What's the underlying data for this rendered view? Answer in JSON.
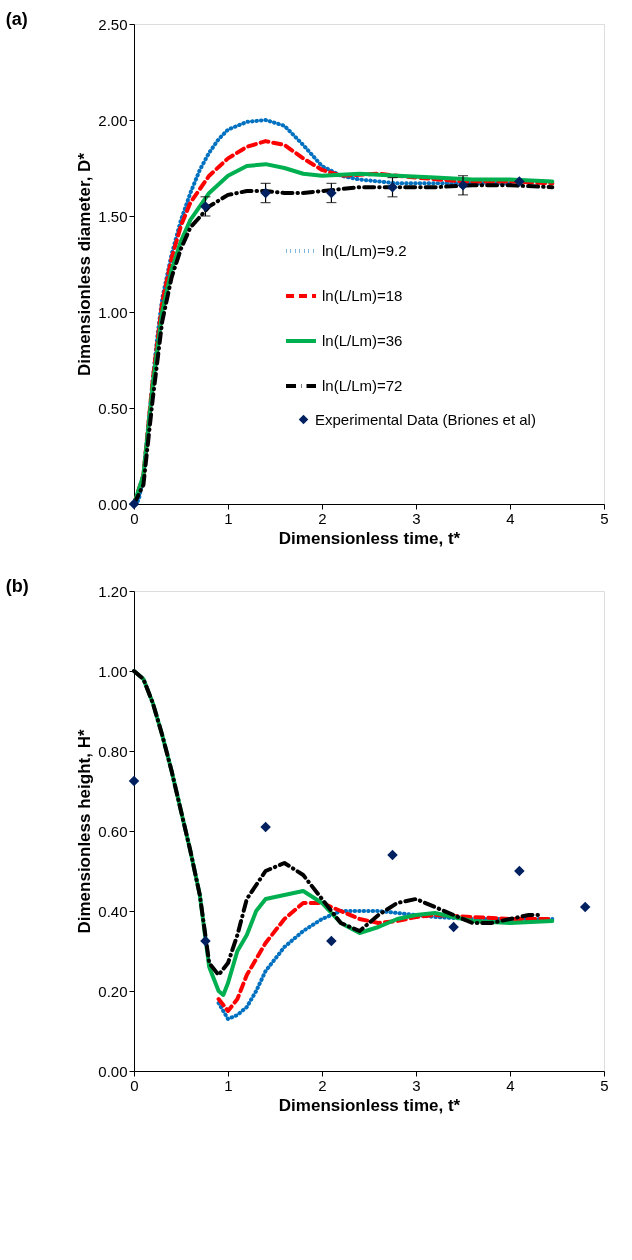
{
  "chart_data": [
    {
      "type": "line",
      "title": "(a)",
      "xlabel": "Dimensionless time, t*",
      "ylabel": "Dimensionless diameter, D*",
      "xlim": [
        0,
        5
      ],
      "xticks": [
        0,
        1,
        2,
        3,
        4,
        5
      ],
      "ylim": [
        0,
        2.5
      ],
      "yticks": [
        {
          "value": 0,
          "label": "0.00"
        },
        {
          "value": 0.5,
          "label": "0.50"
        },
        {
          "value": 1,
          "label": "1.00"
        },
        {
          "value": 1.5,
          "label": "1.50"
        },
        {
          "value": 2,
          "label": "2.00"
        },
        {
          "value": 2.5,
          "label": "2.50"
        }
      ],
      "grid": false,
      "legend": "center",
      "series": [
        {
          "name": "ln(L/Lm)=9.2",
          "color": "#0070c0",
          "line_style": "dotted",
          "marker": "none",
          "x": [
            0,
            0.05,
            0.1,
            0.15,
            0.2,
            0.25,
            0.3,
            0.4,
            0.5,
            0.6,
            0.7,
            0.8,
            0.9,
            1.0,
            1.2,
            1.4,
            1.6,
            1.8,
            2.0,
            2.2,
            2.4,
            2.8,
            3.2,
            3.6,
            4.0
          ],
          "values": [
            0,
            0.02,
            0.15,
            0.4,
            0.65,
            0.88,
            1.07,
            1.3,
            1.48,
            1.62,
            1.74,
            1.83,
            1.9,
            1.95,
            1.99,
            2.0,
            1.97,
            1.87,
            1.76,
            1.71,
            1.69,
            1.67,
            1.67,
            1.67,
            1.67
          ]
        },
        {
          "name": "ln(L/Lm)=18",
          "color": "#ff0000",
          "line_style": "dashed",
          "marker": "none",
          "x": [
            0,
            0.1,
            0.2,
            0.3,
            0.4,
            0.5,
            0.6,
            0.8,
            1.0,
            1.2,
            1.4,
            1.6,
            1.8,
            2.0,
            2.2,
            2.6,
            3.0,
            3.5,
            4.0,
            4.45
          ],
          "values": [
            0,
            0.15,
            0.65,
            1.05,
            1.28,
            1.45,
            1.57,
            1.71,
            1.8,
            1.86,
            1.89,
            1.87,
            1.8,
            1.74,
            1.71,
            1.72,
            1.7,
            1.68,
            1.68,
            1.67
          ]
        },
        {
          "name": "ln(L/Lm)=36",
          "color": "#00b050",
          "line_style": "solid",
          "marker": "none",
          "x": [
            0,
            0.1,
            0.2,
            0.3,
            0.4,
            0.5,
            0.6,
            0.8,
            1.0,
            1.2,
            1.4,
            1.6,
            1.8,
            2.0,
            2.4,
            2.8,
            3.2,
            3.6,
            4.0,
            4.45
          ],
          "values": [
            0,
            0.15,
            0.62,
            1.0,
            1.22,
            1.37,
            1.48,
            1.62,
            1.71,
            1.76,
            1.77,
            1.75,
            1.72,
            1.71,
            1.72,
            1.71,
            1.7,
            1.69,
            1.69,
            1.68
          ]
        },
        {
          "name": "ln(L/Lm)=72",
          "color": "#000000",
          "line_style": "dashdot",
          "marker": "none",
          "x": [
            0,
            0.1,
            0.2,
            0.3,
            0.4,
            0.5,
            0.6,
            0.8,
            1.0,
            1.2,
            1.4,
            1.6,
            1.8,
            2.0,
            2.4,
            2.8,
            3.2,
            3.6,
            4.0,
            4.45
          ],
          "values": [
            0,
            0.1,
            0.55,
            0.95,
            1.18,
            1.33,
            1.44,
            1.55,
            1.61,
            1.63,
            1.63,
            1.62,
            1.62,
            1.63,
            1.65,
            1.65,
            1.65,
            1.66,
            1.66,
            1.65
          ]
        },
        {
          "name": "Experimental Data (Briones et al)",
          "type": "scatter",
          "color": "#002060",
          "marker": "diamond",
          "x": [
            0,
            0.76,
            1.4,
            2.1,
            2.75,
            3.5,
            4.1
          ],
          "values": [
            0,
            1.55,
            1.62,
            1.62,
            1.65,
            1.66,
            1.68
          ],
          "errors": [
            null,
            0.05,
            0.05,
            0.05,
            0.05,
            0.05,
            null
          ]
        }
      ]
    },
    {
      "type": "line",
      "title": "(b)",
      "xlabel": "Dimensionless time, t*",
      "ylabel": "Dimensionless height, H*",
      "xlim": [
        0,
        5
      ],
      "xticks": [
        0,
        1,
        2,
        3,
        4,
        5
      ],
      "ylim": [
        0,
        1.2
      ],
      "yticks": [
        {
          "value": 0,
          "label": "0.00"
        },
        {
          "value": 0.2,
          "label": "0.20"
        },
        {
          "value": 0.4,
          "label": "0.40"
        },
        {
          "value": 0.6,
          "label": "0.60"
        },
        {
          "value": 0.8,
          "label": "0.80"
        },
        {
          "value": 1,
          "label": "1.00"
        },
        {
          "value": 1.2,
          "label": "1.20"
        }
      ],
      "grid": false,
      "series": [
        {
          "color": "#0070c0",
          "line_style": "dotted",
          "marker": "none",
          "x": [
            0.9,
            1.0,
            1.1,
            1.2,
            1.3,
            1.4,
            1.5,
            1.6,
            1.8,
            2.0,
            2.2,
            2.4,
            2.6,
            2.8,
            3.0,
            3.2,
            3.6,
            4.0,
            4.45
          ],
          "values": [
            0.17,
            0.13,
            0.14,
            0.16,
            0.2,
            0.25,
            0.28,
            0.31,
            0.35,
            0.38,
            0.4,
            0.4,
            0.4,
            0.395,
            0.39,
            0.385,
            0.38,
            0.38,
            0.38
          ]
        },
        {
          "color": "#ff0000",
          "line_style": "dashed",
          "marker": "none",
          "x": [
            0.9,
            1.0,
            1.1,
            1.2,
            1.4,
            1.6,
            1.8,
            2.0,
            2.2,
            2.4,
            2.6,
            2.8,
            3.0,
            3.2,
            3.6,
            4.0,
            4.45
          ],
          "values": [
            0.18,
            0.15,
            0.18,
            0.24,
            0.32,
            0.38,
            0.42,
            0.42,
            0.4,
            0.38,
            0.37,
            0.375,
            0.385,
            0.39,
            0.385,
            0.38,
            0.38
          ]
        },
        {
          "color": "#00b050",
          "line_style": "solid",
          "marker": "none",
          "x": [
            0,
            0.1,
            0.2,
            0.3,
            0.4,
            0.5,
            0.6,
            0.7,
            0.8,
            0.9,
            0.95,
            1.0,
            1.1,
            1.2,
            1.3,
            1.4,
            1.6,
            1.8,
            2.0,
            2.2,
            2.4,
            2.6,
            2.8,
            3.0,
            3.2,
            3.6,
            4.0,
            4.45
          ],
          "values": [
            1.0,
            0.98,
            0.92,
            0.84,
            0.75,
            0.65,
            0.55,
            0.44,
            0.26,
            0.2,
            0.19,
            0.22,
            0.3,
            0.34,
            0.4,
            0.43,
            0.44,
            0.45,
            0.42,
            0.37,
            0.345,
            0.36,
            0.38,
            0.39,
            0.395,
            0.375,
            0.37,
            0.375
          ]
        },
        {
          "color": "#000000",
          "line_style": "dashdot",
          "marker": "none",
          "x": [
            0,
            0.1,
            0.2,
            0.3,
            0.4,
            0.5,
            0.6,
            0.7,
            0.8,
            0.9,
            1.0,
            1.1,
            1.2,
            1.4,
            1.6,
            1.8,
            2.0,
            2.2,
            2.4,
            2.6,
            2.8,
            3.0,
            3.2,
            3.4,
            3.6,
            3.8,
            4.0,
            4.2,
            4.3
          ],
          "values": [
            1.0,
            0.98,
            0.92,
            0.84,
            0.75,
            0.65,
            0.55,
            0.44,
            0.27,
            0.24,
            0.27,
            0.34,
            0.43,
            0.5,
            0.52,
            0.49,
            0.43,
            0.37,
            0.35,
            0.39,
            0.42,
            0.43,
            0.41,
            0.39,
            0.37,
            0.37,
            0.38,
            0.39,
            0.39
          ]
        },
        {
          "type": "scatter",
          "color": "#002060",
          "marker": "diamond",
          "x": [
            0,
            0.76,
            1.4,
            2.1,
            2.75,
            3.4,
            4.1,
            4.8
          ],
          "values": [
            0.725,
            0.325,
            0.61,
            0.325,
            0.54,
            0.36,
            0.5,
            0.41
          ]
        }
      ]
    }
  ]
}
